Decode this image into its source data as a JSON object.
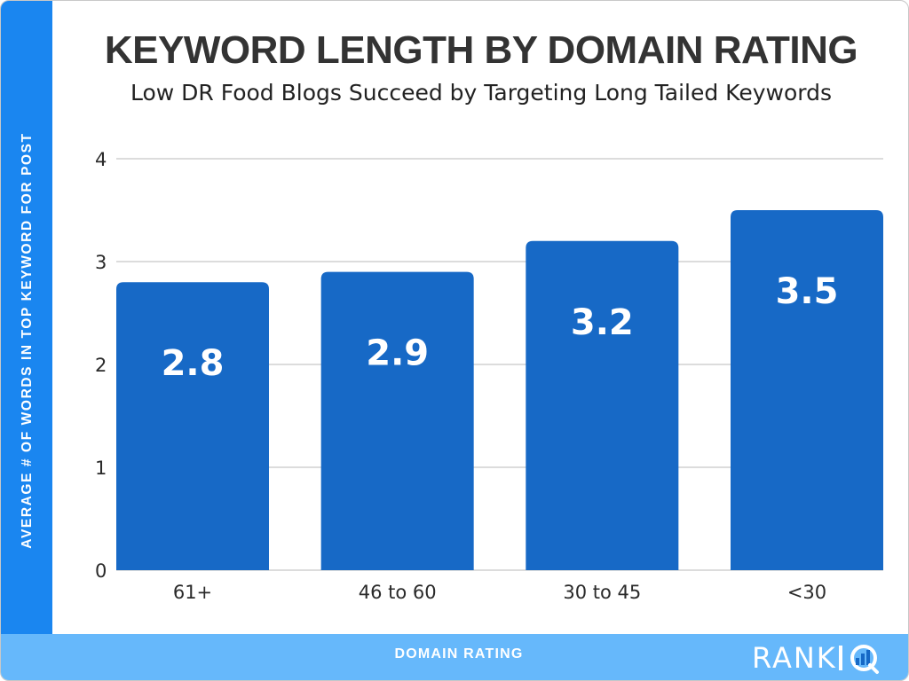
{
  "chart_data": {
    "type": "bar",
    "title": "KEYWORD LENGTH BY DOMAIN RATING",
    "subtitle": "Low DR Food Blogs Succeed by Targeting Long Tailed Keywords",
    "xlabel": "DOMAIN RATING",
    "ylabel": "AVERAGE # OF WORDS IN TOP KEYWORD FOR POST",
    "categories": [
      "61+",
      "46 to 60",
      "30 to 45",
      "<30"
    ],
    "values": [
      2.8,
      2.9,
      3.2,
      3.5
    ],
    "data_labels": [
      "2.8",
      "2.9",
      "3.2",
      "3.5"
    ],
    "yticks": [
      0,
      1,
      2,
      3,
      4
    ],
    "ylim": [
      0,
      4
    ],
    "grid": true,
    "legend": "none"
  },
  "brand": {
    "logo_prefix": "RANK",
    "logo_suffix": "IQ"
  },
  "colors": {
    "bar": "#1769c6",
    "left_bar": "#1a86f0",
    "bottom_bar": "#66b8fb",
    "grid": "#d0d0d0",
    "title": "#333333"
  }
}
